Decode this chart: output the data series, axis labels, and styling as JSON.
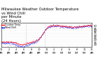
{
  "title": "Milwaukee Weather Outdoor Temperature\nvs Wind Chill\nper Minute\n(24 Hours)",
  "title_fontsize": 3.8,
  "bg_color": "#ffffff",
  "plot_bg_color": "#ffffff",
  "line1_color": "#ff0000",
  "line2_color": "#0000ff",
  "tick_fontsize": 2.8,
  "ylim": [
    5,
    57
  ],
  "yticks": [
    10,
    15,
    20,
    25,
    30,
    35,
    40,
    45,
    50
  ],
  "vline_x": [
    6.5,
    11.5
  ],
  "legend_label1": "Outdoor Temp",
  "legend_label2": "Wind Chill",
  "seed": 42,
  "n_points": 1440,
  "subsample": 3
}
